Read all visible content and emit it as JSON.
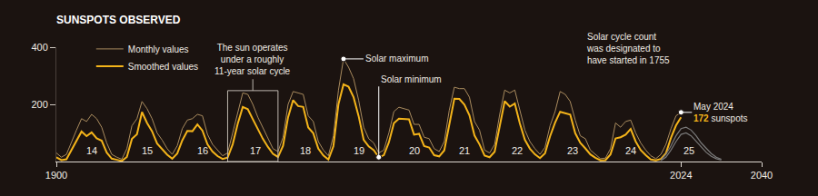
{
  "chart_data": {
    "type": "line",
    "title": "SUNSPOTS OBSERVED",
    "x": [
      1900,
      1901,
      1902,
      1903,
      1904,
      1905,
      1906,
      1907,
      1908,
      1909,
      1910,
      1911,
      1912,
      1913,
      1914,
      1915,
      1916,
      1917,
      1918,
      1919,
      1920,
      1921,
      1922,
      1923,
      1924,
      1925,
      1926,
      1927,
      1928,
      1929,
      1930,
      1931,
      1932,
      1933,
      1934,
      1935,
      1936,
      1937,
      1938,
      1939,
      1940,
      1941,
      1942,
      1943,
      1944,
      1945,
      1946,
      1947,
      1948,
      1949,
      1950,
      1951,
      1952,
      1953,
      1954,
      1955,
      1956,
      1957,
      1958,
      1959,
      1960,
      1961,
      1962,
      1963,
      1964,
      1965,
      1966,
      1967,
      1968,
      1969,
      1970,
      1971,
      1972,
      1973,
      1974,
      1975,
      1976,
      1977,
      1978,
      1979,
      1980,
      1981,
      1982,
      1983,
      1984,
      1985,
      1986,
      1987,
      1988,
      1989,
      1990,
      1991,
      1992,
      1993,
      1994,
      1995,
      1996,
      1997,
      1998,
      1999,
      2000,
      2001,
      2002,
      2003,
      2004,
      2005,
      2006,
      2007,
      2008,
      2009,
      2010,
      2011,
      2012,
      2013,
      2014,
      2015,
      2016,
      2017,
      2018,
      2019,
      2020,
      2021,
      2022,
      2023,
      2024
    ],
    "series": [
      {
        "name": "Monthly values",
        "color": "#a98b5e",
        "values": [
          30,
          15,
          25,
          70,
          110,
          150,
          140,
          165,
          150,
          120,
          65,
          25,
          15,
          8,
          45,
          125,
          150,
          210,
          185,
          150,
          100,
          75,
          45,
          25,
          55,
          115,
          145,
          150,
          165,
          160,
          95,
          60,
          40,
          20,
          30,
          100,
          175,
          240,
          235,
          200,
          155,
          120,
          85,
          45,
          35,
          85,
          200,
          245,
          240,
          235,
          160,
          140,
          70,
          40,
          20,
          90,
          250,
          359,
          330,
          290,
          215,
          120,
          80,
          65,
          30,
          40,
          100,
          175,
          190,
          185,
          180,
          130,
          130,
          85,
          80,
          45,
          35,
          70,
          180,
          260,
          255,
          255,
          225,
          140,
          110,
          40,
          30,
          60,
          165,
          250,
          240,
          250,
          180,
          110,
          70,
          45,
          25,
          50,
          125,
          175,
          245,
          235,
          210,
          145,
          90,
          80,
          40,
          25,
          10,
          12,
          45,
          135,
          120,
          140,
          145,
          100,
          65,
          40,
          20,
          10,
          25,
          60,
          115,
          160,
          172
        ]
      },
      {
        "name": "Smoothed values",
        "color": "#f4b41a",
        "values": [
          15,
          5,
          8,
          41,
          70,
          105,
          89,
          102,
          81,
          73,
          31,
          10,
          6,
          2,
          16,
          79,
          95,
          173,
          135,
          106,
          63,
          43,
          24,
          10,
          28,
          74,
          107,
          106,
          130,
          108,
          60,
          35,
          19,
          9,
          14,
          60,
          132,
          191,
          183,
          148,
          113,
          79,
          51,
          27,
          16,
          55,
          155,
          215,
          194,
          191,
          119,
          99,
          45,
          21,
          7,
          54,
          201,
          270,
          262,
          225,
          159,
          76,
          53,
          40,
          15,
          22,
          67,
          134,
          150,
          149,
          148,
          94,
          97,
          54,
          49,
          22,
          18,
          39,
          131,
          220,
          219,
          199,
          162,
          91,
          60,
          21,
          15,
          34,
          123,
          211,
          192,
          203,
          133,
          76,
          45,
          25,
          12,
          29,
          88,
          136,
          174,
          170,
          164,
          99,
          65,
          46,
          25,
          13,
          4,
          5,
          25,
          81,
          85,
          94,
          114,
          70,
          40,
          22,
          7,
          4,
          9,
          29,
          83,
          126,
          155
        ]
      },
      {
        "color": "#7a7a7a",
        "x": [
          2020,
          2021,
          2022,
          2023,
          2024,
          2025,
          2026,
          2027,
          2028,
          2029,
          2030,
          2031,
          2032
        ],
        "values": [
          3,
          15,
          40,
          70,
          95,
          100,
          90,
          70,
          50,
          32,
          18,
          10,
          5
        ]
      },
      {
        "color": "#7a7a7a",
        "x": [
          2020,
          2021,
          2022,
          2023,
          2024,
          2025,
          2026,
          2027,
          2028,
          2029,
          2030,
          2031,
          2032
        ],
        "values": [
          5,
          25,
          55,
          90,
          115,
          120,
          110,
          90,
          65,
          45,
          28,
          15,
          8
        ]
      }
    ],
    "xlim": [
      1900,
      2040
    ],
    "xticks": [
      1900,
      2024,
      2040
    ],
    "ylim": [
      0,
      400
    ],
    "yticks": [
      200,
      400
    ],
    "grid": false,
    "legend": "upper left",
    "cycles": [
      {
        "x": 1907,
        "label": "14"
      },
      {
        "x": 1918,
        "label": "15"
      },
      {
        "x": 1929,
        "label": "16"
      },
      {
        "x": 1939.5,
        "label": "17"
      },
      {
        "x": 1949.5,
        "label": "18"
      },
      {
        "x": 1960,
        "label": "19"
      },
      {
        "x": 1971,
        "label": "20"
      },
      {
        "x": 1981,
        "label": "21"
      },
      {
        "x": 1991.5,
        "label": "22"
      },
      {
        "x": 2002.5,
        "label": "23"
      },
      {
        "x": 2014,
        "label": "24"
      },
      {
        "x": 2025.5,
        "label": "25"
      }
    ],
    "annotations": [
      {
        "lines": [
          "The sun operates",
          "under a roughly",
          "11-year solar cycle"
        ],
        "x0": 1934,
        "x1": 1944
      },
      {
        "text": "Solar maximum",
        "x": 1957,
        "y": 359
      },
      {
        "text": "Solar minimum",
        "x": 1964,
        "y": 15
      },
      {
        "lines": [
          "Solar cycle count",
          "was designated to",
          "have started in 1755"
        ]
      },
      {
        "text": "May 2024",
        "x": 2024,
        "y": 172,
        "label": "sunspots"
      }
    ]
  }
}
